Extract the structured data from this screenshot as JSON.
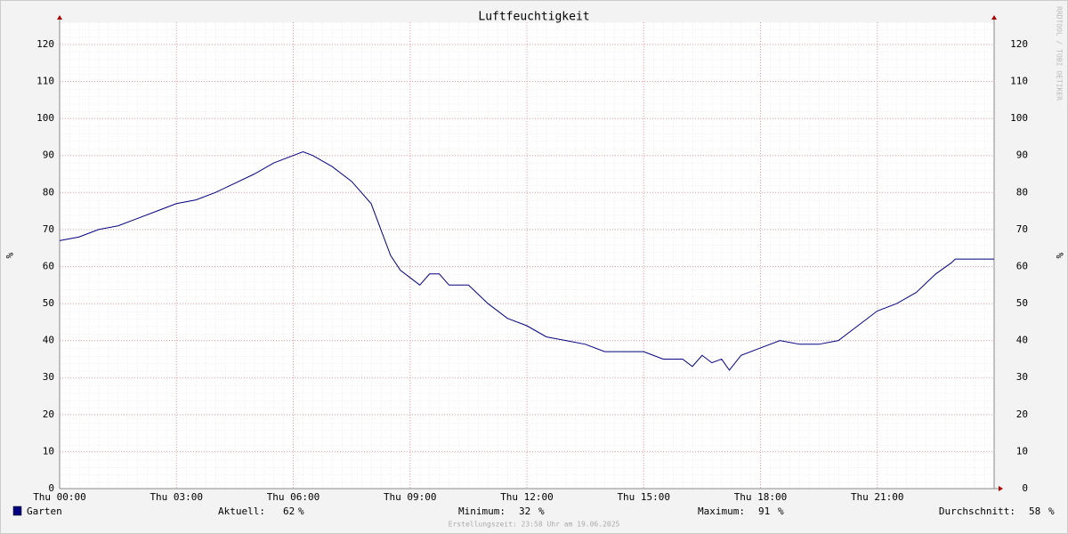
{
  "chart_data": {
    "type": "line",
    "title": "Luftfeuchtigkeit",
    "y_label": "%",
    "watermark": "RRDTOOL / TOBI OETIKER",
    "xlim": [
      0,
      24
    ],
    "xticks": [
      {
        "value": 0,
        "label": "Thu 00:00"
      },
      {
        "value": 3,
        "label": "Thu 03:00"
      },
      {
        "value": 6,
        "label": "Thu 06:00"
      },
      {
        "value": 9,
        "label": "Thu 09:00"
      },
      {
        "value": 12,
        "label": "Thu 12:00"
      },
      {
        "value": 15,
        "label": "Thu 15:00"
      },
      {
        "value": 18,
        "label": "Thu 18:00"
      },
      {
        "value": 21,
        "label": "Thu 21:00"
      }
    ],
    "ylim": [
      0,
      126
    ],
    "yticks": [
      0,
      10,
      20,
      30,
      40,
      50,
      60,
      70,
      80,
      90,
      100,
      110,
      120
    ],
    "grid": true,
    "x": [
      0,
      0.5,
      1,
      1.5,
      2,
      2.5,
      3,
      3.5,
      4,
      4.5,
      5,
      5.5,
      6,
      6.25,
      6.5,
      7,
      7.5,
      8,
      8.25,
      8.5,
      8.75,
      9,
      9.25,
      9.5,
      9.75,
      10,
      10.5,
      11,
      11.5,
      12,
      12.5,
      13,
      13.5,
      14,
      14.5,
      15,
      15.5,
      16,
      16.25,
      16.5,
      16.75,
      17,
      17.2,
      17.5,
      18,
      18.5,
      19,
      19.5,
      20,
      20.5,
      21,
      21.5,
      22,
      22.5,
      22.9,
      23,
      24
    ],
    "series": [
      {
        "name": "Garten",
        "color": "#000080",
        "values": [
          67,
          68,
          70,
          71,
          73,
          75,
          77,
          78,
          80,
          82.5,
          85,
          88,
          90,
          91,
          90,
          87,
          83,
          77,
          70,
          63,
          59,
          57,
          55,
          58,
          58,
          55,
          55,
          50,
          46,
          44,
          41,
          40,
          39,
          37,
          37,
          37,
          35,
          35,
          33,
          36,
          34,
          35,
          32,
          36,
          38,
          40,
          39,
          39,
          40,
          44,
          48,
          50,
          53,
          58,
          61,
          62,
          62
        ]
      }
    ],
    "stats": [
      {
        "label": "Aktuell:",
        "value": 62,
        "unit": "%"
      },
      {
        "label": "Minimum:",
        "value": 32,
        "unit": "%"
      },
      {
        "label": "Maximum:",
        "value": 91,
        "unit": "%"
      },
      {
        "label": "Durchschnitt:",
        "value": 58,
        "unit": "%"
      }
    ],
    "footer": "Erstellungszeit: 23:58 Uhr am 19.06.2025"
  }
}
